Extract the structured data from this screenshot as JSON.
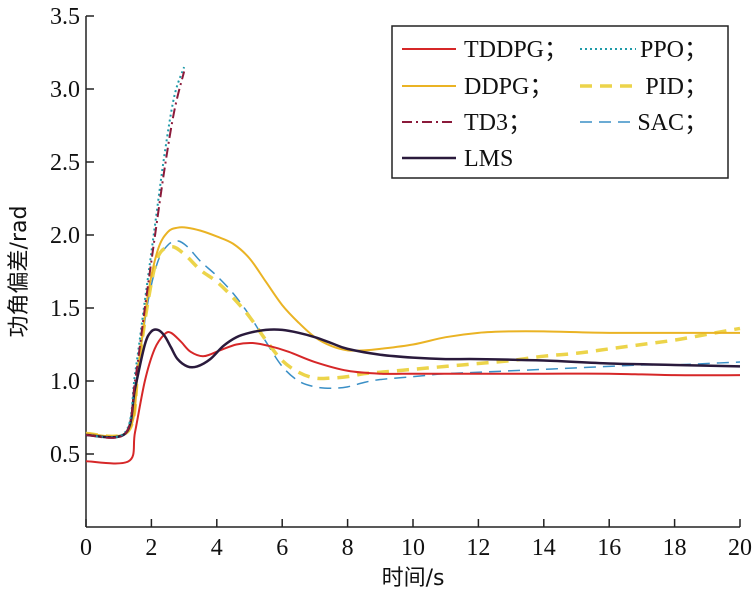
{
  "chart_data": {
    "type": "line",
    "xlabel": "时间/s",
    "ylabel": "功角偏差/rad",
    "xlim": [
      0,
      20
    ],
    "ylim": [
      0.0,
      3.5
    ],
    "xticks": [
      "0",
      "2",
      "4",
      "6",
      "8",
      "10",
      "12",
      "14",
      "16",
      "18",
      "20"
    ],
    "yticks": [
      "0.5",
      "1.0",
      "1.5",
      "2.0",
      "2.5",
      "3.0",
      "3.5"
    ],
    "grid": false,
    "legend_position": "top-right",
    "series": [
      {
        "name": "TDDPG",
        "legend_text": "TDDPG；",
        "color": "#d62728",
        "style": "solid",
        "width": 2,
        "x": [
          0,
          1.3,
          1.5,
          1.8,
          2.1,
          2.4,
          2.6,
          2.9,
          3.2,
          3.6,
          4.1,
          4.6,
          5.1,
          5.6,
          6.2,
          7.0,
          8.0,
          9.0,
          10.0,
          11.0,
          12.0,
          14.0,
          16.0,
          18.0,
          20.0
        ],
        "y": [
          0.45,
          0.45,
          0.65,
          1.0,
          1.22,
          1.32,
          1.33,
          1.27,
          1.2,
          1.17,
          1.21,
          1.25,
          1.26,
          1.24,
          1.2,
          1.13,
          1.07,
          1.05,
          1.05,
          1.05,
          1.05,
          1.05,
          1.05,
          1.04,
          1.04
        ]
      },
      {
        "name": "PPO",
        "legend_text": "PPO；",
        "color": "#1f9aa8",
        "style": "dotted",
        "width": 2,
        "x": [
          0,
          1.2,
          1.5,
          1.8,
          2.1,
          2.4,
          2.7,
          3.0
        ],
        "y": [
          0.63,
          0.65,
          1.05,
          1.55,
          2.05,
          2.55,
          2.95,
          3.15
        ]
      },
      {
        "name": "DDPG",
        "legend_text": "DDPG；",
        "color": "#eab324",
        "style": "solid",
        "width": 2,
        "x": [
          0,
          1.3,
          1.6,
          1.9,
          2.2,
          2.5,
          2.8,
          3.1,
          3.5,
          4.0,
          4.5,
          5.0,
          5.5,
          6.0,
          6.5,
          7.0,
          7.5,
          8.0,
          8.5,
          9.0,
          10.0,
          11.0,
          12.0,
          13.0,
          14.0,
          16.0,
          18.0,
          20.0
        ],
        "y": [
          0.64,
          0.66,
          1.1,
          1.6,
          1.9,
          2.02,
          2.05,
          2.05,
          2.03,
          1.99,
          1.94,
          1.84,
          1.68,
          1.52,
          1.4,
          1.3,
          1.24,
          1.21,
          1.21,
          1.22,
          1.25,
          1.3,
          1.33,
          1.34,
          1.34,
          1.33,
          1.33,
          1.33
        ]
      },
      {
        "name": "PID",
        "legend_text": "PID；",
        "color": "#ecd44a",
        "style": "dashed",
        "width": 3.5,
        "x": [
          0,
          1.3,
          1.6,
          1.9,
          2.2,
          2.6,
          3.0,
          3.5,
          4.0,
          4.5,
          5.0,
          5.5,
          6.0,
          6.5,
          7.0,
          7.5,
          8.0,
          8.5,
          9.0,
          10.0,
          11.0,
          12.0,
          13.0,
          14.0,
          15.0,
          16.0,
          17.0,
          18.0,
          19.0,
          20.0
        ],
        "y": [
          0.64,
          0.66,
          1.1,
          1.55,
          1.85,
          1.92,
          1.87,
          1.76,
          1.68,
          1.57,
          1.44,
          1.28,
          1.14,
          1.06,
          1.02,
          1.02,
          1.03,
          1.05,
          1.06,
          1.08,
          1.1,
          1.12,
          1.14,
          1.17,
          1.19,
          1.22,
          1.25,
          1.28,
          1.32,
          1.36
        ]
      },
      {
        "name": "TD3",
        "legend_text": "TD3；",
        "color": "#8b1a3a",
        "style": "dashdot",
        "width": 2,
        "x": [
          0,
          1.2,
          1.5,
          1.8,
          2.1,
          2.4,
          2.7,
          3.0
        ],
        "y": [
          0.63,
          0.64,
          1.0,
          1.5,
          1.98,
          2.45,
          2.85,
          3.12
        ]
      },
      {
        "name": "SAC",
        "legend_text": "SAC；",
        "color": "#3a8fc6",
        "style": "longdash",
        "width": 1.5,
        "x": [
          0,
          1.3,
          1.6,
          1.9,
          2.2,
          2.5,
          2.8,
          3.1,
          3.5,
          4.0,
          4.5,
          5.0,
          5.5,
          6.0,
          6.5,
          7.0,
          7.5,
          8.0,
          8.5,
          9.0,
          10.0,
          11.0,
          12.0,
          13.0,
          14.0,
          15.0,
          16.0,
          17.0,
          18.0,
          19.0,
          20.0
        ],
        "y": [
          0.64,
          0.66,
          1.1,
          1.55,
          1.82,
          1.93,
          1.96,
          1.92,
          1.82,
          1.72,
          1.6,
          1.45,
          1.27,
          1.1,
          1.0,
          0.96,
          0.95,
          0.96,
          0.99,
          1.01,
          1.03,
          1.05,
          1.06,
          1.07,
          1.08,
          1.09,
          1.1,
          1.11,
          1.11,
          1.12,
          1.13
        ]
      },
      {
        "name": "LMS",
        "legend_text": "LMS",
        "color": "#2a1a3c",
        "style": "solid",
        "width": 2.5,
        "x": [
          0,
          1.2,
          1.5,
          1.8,
          2.0,
          2.2,
          2.4,
          2.6,
          2.8,
          3.1,
          3.4,
          3.8,
          4.2,
          4.6,
          5.0,
          5.5,
          6.0,
          6.5,
          7.0,
          7.5,
          8.0,
          9.0,
          10.0,
          11.0,
          12.0,
          14.0,
          16.0,
          18.0,
          20.0
        ],
        "y": [
          0.63,
          0.64,
          0.95,
          1.25,
          1.34,
          1.35,
          1.31,
          1.23,
          1.15,
          1.1,
          1.1,
          1.15,
          1.24,
          1.3,
          1.33,
          1.35,
          1.35,
          1.33,
          1.3,
          1.26,
          1.22,
          1.18,
          1.16,
          1.15,
          1.15,
          1.14,
          1.12,
          1.11,
          1.1
        ]
      }
    ],
    "legend": {
      "rows": [
        [
          "TDDPG",
          "PPO"
        ],
        [
          "DDPG",
          "PID"
        ],
        [
          "TD3",
          "SAC"
        ],
        [
          "LMS"
        ]
      ]
    }
  }
}
